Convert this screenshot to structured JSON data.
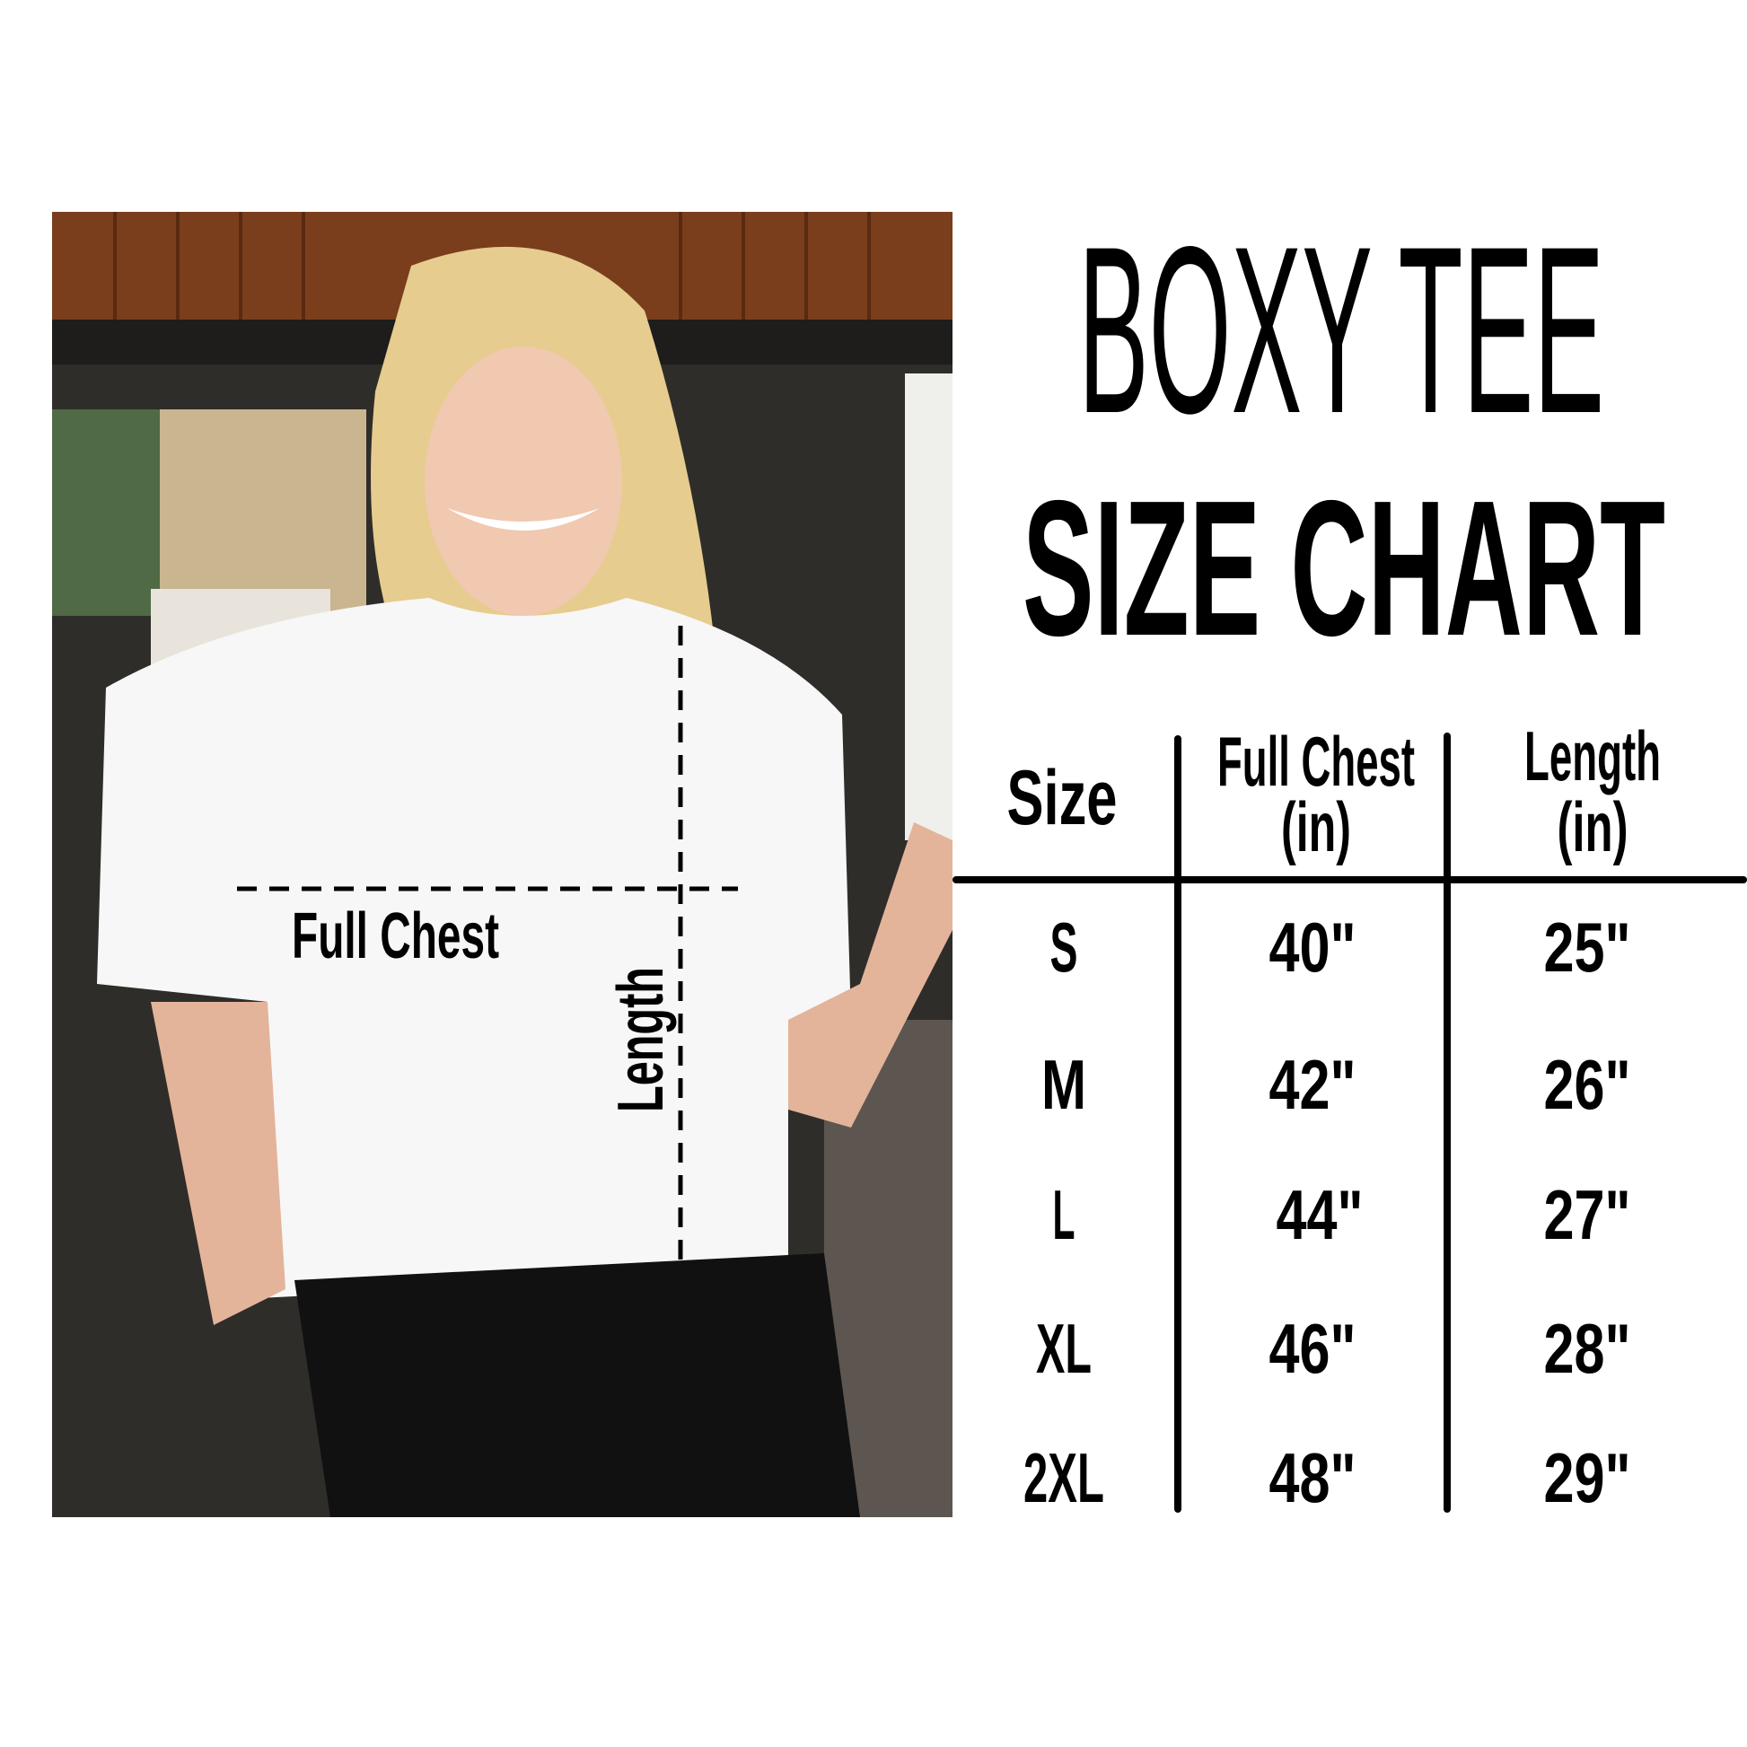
{
  "title": {
    "line1": "BOXY TEE",
    "line2": "SIZE CHART"
  },
  "photo": {
    "chest_label": "Full Chest",
    "length_label": "Length"
  },
  "table": {
    "headers": [
      {
        "line1": "Size",
        "line2": ""
      },
      {
        "line1": "Full Chest",
        "line2": "(in)"
      },
      {
        "line1": "Length",
        "line2": "(in)"
      }
    ],
    "rows": [
      {
        "size": "S",
        "chest": "40\"",
        "length": "25\""
      },
      {
        "size": "M",
        "chest": "42\"",
        "length": "26\""
      },
      {
        "size": "L",
        "chest": "44\"",
        "length": "27\""
      },
      {
        "size": "XL",
        "chest": "46\"",
        "length": "28\""
      },
      {
        "size": "2XL",
        "chest": "48\"",
        "length": "29\""
      }
    ]
  }
}
